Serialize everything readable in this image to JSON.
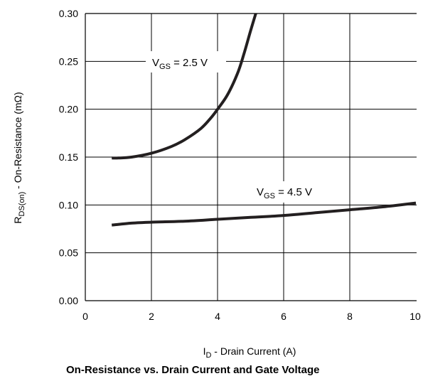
{
  "chart_data": {
    "type": "line",
    "title": "On-Resistance vs. Drain Current and Gate Voltage",
    "xlabel": {
      "main": "I",
      "sub": "D",
      "rest": " - Drain Current (A)"
    },
    "ylabel": {
      "main": "R",
      "sub": "DS(on)",
      "rest": " - On-Resistance (mΩ)"
    },
    "xlim": [
      0,
      10
    ],
    "ylim": [
      0,
      0.3
    ],
    "x_ticks": [
      "0",
      "2",
      "4",
      "6",
      "8",
      "10"
    ],
    "y_ticks": [
      "0.00",
      "0.05",
      "0.10",
      "0.15",
      "0.20",
      "0.25",
      "0.30"
    ],
    "grid": true,
    "series": [
      {
        "label": {
          "main": "V",
          "sub": "GS",
          "rest": " = 2.5 V"
        },
        "x": [
          0.8,
          1.0,
          1.4,
          2.0,
          2.6,
          3.0,
          3.5,
          3.8,
          4.0,
          4.3,
          4.6,
          4.8,
          5.0,
          5.2
        ],
        "y": [
          0.149,
          0.149,
          0.15,
          0.154,
          0.161,
          0.168,
          0.18,
          0.191,
          0.2,
          0.215,
          0.237,
          0.258,
          0.282,
          0.305
        ]
      },
      {
        "label": {
          "main": "V",
          "sub": "GS",
          "rest": " = 4.5 V"
        },
        "x": [
          0.8,
          1.4,
          2.0,
          3.0,
          4.0,
          5.0,
          6.0,
          7.0,
          8.0,
          9.0,
          10.0
        ],
        "y": [
          0.079,
          0.081,
          0.082,
          0.083,
          0.085,
          0.087,
          0.089,
          0.092,
          0.095,
          0.098,
          0.102
        ]
      }
    ]
  }
}
